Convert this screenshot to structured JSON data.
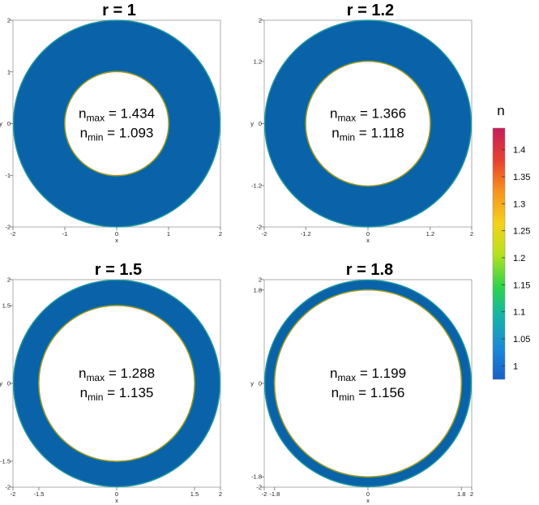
{
  "chart_data": [
    {
      "type": "heatmap",
      "title": "r = 1",
      "xlabel": "x",
      "ylabel": "y",
      "xlim": [
        -2,
        2
      ],
      "ylim": [
        -2,
        2
      ],
      "xticks": [
        "-2",
        "-1",
        "0",
        "1",
        "2"
      ],
      "yticks": [
        "-2",
        "-1",
        "0",
        "1",
        "2"
      ],
      "inner_radius": 1,
      "outer_radius": 2,
      "n_max_label": "max",
      "n_max_value": "1.434",
      "n_min_label": "min",
      "n_min_value": "1.093"
    },
    {
      "type": "heatmap",
      "title": "r = 1.2",
      "xlabel": "x",
      "ylabel": "y",
      "xlim": [
        -2,
        2
      ],
      "ylim": [
        -2,
        2
      ],
      "xticks": [
        "-2",
        "-1.2",
        "0",
        "1.2",
        "2"
      ],
      "yticks": [
        "-2",
        "-1.2",
        "0",
        "1.2",
        "2"
      ],
      "inner_radius": 1.2,
      "outer_radius": 2,
      "n_max_label": "max",
      "n_max_value": "1.366",
      "n_min_label": "min",
      "n_min_value": "1.118"
    },
    {
      "type": "heatmap",
      "title": "r = 1.5",
      "xlabel": "x",
      "ylabel": "y",
      "xlim": [
        -2,
        2
      ],
      "ylim": [
        -2,
        2
      ],
      "xticks": [
        "-2",
        "-1.5",
        "0",
        "1.5",
        "2"
      ],
      "yticks": [
        "-2",
        "-1.5",
        "0",
        "1.5",
        "2"
      ],
      "inner_radius": 1.5,
      "outer_radius": 2,
      "n_max_label": "max",
      "n_max_value": "1.288",
      "n_min_label": "min",
      "n_min_value": "1.135"
    },
    {
      "type": "heatmap",
      "title": "r = 1.8",
      "xlabel": "x",
      "ylabel": "y",
      "xlim": [
        -2,
        2
      ],
      "ylim": [
        -2,
        2
      ],
      "xticks": [
        "-2",
        "-1.8",
        "0",
        "1.8",
        "2"
      ],
      "yticks": [
        "-2",
        "-1.8",
        "0",
        "1.8",
        "2"
      ],
      "inner_radius": 1.8,
      "outer_radius": 2,
      "n_max_label": "max",
      "n_max_value": "1.199",
      "n_min_label": "min",
      "n_min_value": "1.156"
    }
  ],
  "colorbar": {
    "title": "n",
    "range": [
      0.975,
      1.44
    ],
    "ticks": [
      "1",
      "1.05",
      "1.1",
      "1.15",
      "1.2",
      "1.25",
      "1.3",
      "1.35",
      "1.4"
    ],
    "colors": [
      "#1a5fc7",
      "#1b88d6",
      "#14b3a8",
      "#2fd44a",
      "#b8e11d",
      "#f4d21a",
      "#f6921e",
      "#e8412f",
      "#c41f5c"
    ]
  },
  "colors": {
    "ring_fill": "#0a62a8",
    "ring_edge": "#1f9aa0",
    "inner_edge": "#b58a22"
  },
  "annotation_prefix": "n"
}
